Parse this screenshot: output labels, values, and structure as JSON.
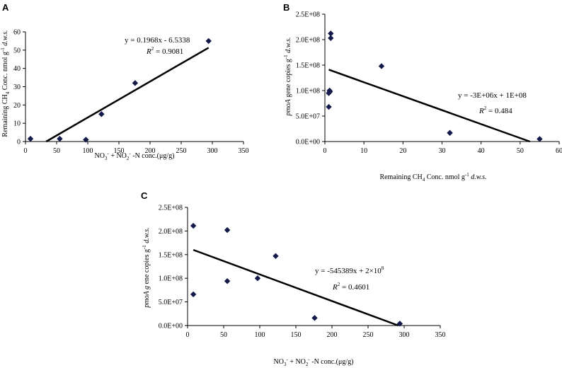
{
  "chart_data": [
    {
      "panel": "A",
      "type": "scatter",
      "x": [
        8,
        55,
        97,
        122,
        176,
        294
      ],
      "y": [
        1.5,
        1.5,
        1,
        15,
        32,
        55
      ],
      "xlim": [
        0,
        350
      ],
      "ylim": [
        0,
        60
      ],
      "xticks": [
        "0",
        "50",
        "100",
        "150",
        "200",
        "250",
        "300",
        "350"
      ],
      "yticks": [
        "0",
        "10",
        "20",
        "30",
        "40",
        "50",
        "60"
      ],
      "xlabel": "NO3- + NO2- -N conc.(μg/g)",
      "xlabel_parts": [
        "NO",
        "3",
        "-",
        " + NO",
        "2",
        "-",
        " -N conc.(μg/g)"
      ],
      "ylabel": "Remaining CH4 Conc. nmol g-1 d.w.s.",
      "ylabel_parts": [
        "Remaining CH",
        "4",
        " Conc. nmol g",
        "-1",
        " d.w.s."
      ],
      "fit": {
        "slope": 0.1968,
        "intercept": -6.5338,
        "x_range": [
          33.2,
          294
        ]
      },
      "equation": "y = 0.1968x - 6.5338",
      "r2_label": "R",
      "r2_value": " = 0.9081"
    },
    {
      "panel": "B",
      "type": "scatter",
      "x": [
        1.0,
        1.0,
        1.2,
        1.3,
        1.5,
        1.5,
        14.5,
        32,
        55
      ],
      "y": [
        68000000,
        95000000,
        100000000,
        98000000,
        212000000,
        203000000,
        148000000,
        17000000,
        5000000
      ],
      "xlim": [
        0,
        60
      ],
      "ylim": [
        0,
        250000000
      ],
      "xticks": [
        "0",
        "10",
        "20",
        "30",
        "40",
        "50",
        "60"
      ],
      "yticks": [
        "0.0E+00",
        "5.0E+07",
        "1.0E+08",
        "1.5E+08",
        "2.0E+08",
        "2.5E+08"
      ],
      "xlabel": "Remaining CH4 Conc. nmol g-1 d.w.s.",
      "xlabel_parts": [
        "Remaining CH",
        "4",
        " Conc. nmol g",
        "-1",
        " d.w.s."
      ],
      "ylabel": "pmoA gene copies g-1 d.w.s.",
      "ylabel_parts": [
        "pmoA",
        "  gene copies g",
        "-1",
        " d.w.s."
      ],
      "fit": {
        "start": [
          1,
          141000000
        ],
        "end": [
          52.5,
          0
        ]
      },
      "equation": "y = -3E+06x + 1E+08",
      "r2_label": "R",
      "r2_value": " = 0.484"
    },
    {
      "panel": "C",
      "type": "scatter",
      "x": [
        8,
        8,
        55,
        55,
        97,
        122,
        176,
        294
      ],
      "y": [
        66000000,
        211000000,
        94000000,
        202000000,
        100000000,
        147000000,
        16000000,
        4000000
      ],
      "xlim": [
        0,
        350
      ],
      "ylim": [
        0,
        250000000
      ],
      "xticks": [
        "0",
        "50",
        "100",
        "150",
        "200",
        "250",
        "300",
        "350"
      ],
      "yticks": [
        "0.0E+00",
        "5.0E+07",
        "1.0E+08",
        "1.5E+08",
        "2.0E+08",
        "2.5E+08"
      ],
      "xlabel": "NO3- + NO2- -N conc.(μg/g)",
      "xlabel_parts": [
        "NO",
        "3",
        "-",
        " + NO",
        "2",
        "-",
        " -N conc.(μg/g)"
      ],
      "ylabel": "pmoA g ene copies g-1 d.w.s.",
      "ylabel_parts": [
        "pmoA g",
        " ene copies g",
        "-1",
        " d.w.s."
      ],
      "fit": {
        "start": [
          8,
          160000000
        ],
        "end": [
          292,
          0
        ]
      },
      "equation": "y = -545389x + 2×10",
      "equation_sup": "8",
      "r2_label": "R",
      "r2_value": " = 0.4601"
    }
  ]
}
